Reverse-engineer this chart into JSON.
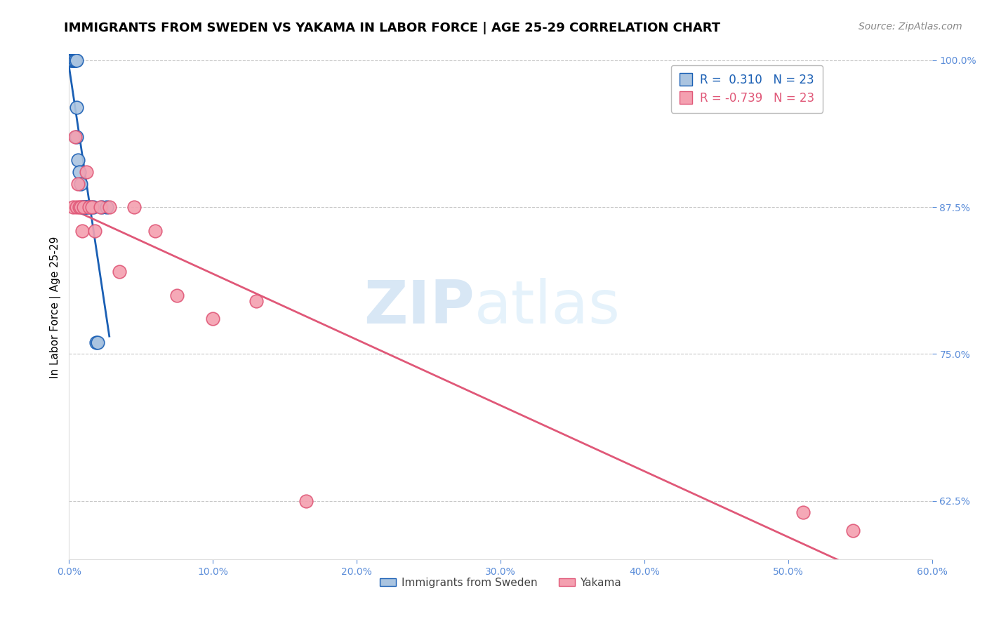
{
  "title": "IMMIGRANTS FROM SWEDEN VS YAKAMA IN LABOR FORCE | AGE 25-29 CORRELATION CHART",
  "source_text": "Source: ZipAtlas.com",
  "ylabel": "In Labor Force | Age 25-29",
  "watermark_zip": "ZIP",
  "watermark_atlas": "atlas",
  "xlim": [
    0.0,
    0.6
  ],
  "ylim": [
    0.575,
    1.005
  ],
  "yticks": [
    0.625,
    0.75,
    0.875,
    1.0
  ],
  "ytick_labels": [
    "62.5%",
    "75.0%",
    "87.5%",
    "100.0%"
  ],
  "xticks": [
    0.0,
    0.1,
    0.2,
    0.3,
    0.4,
    0.5,
    0.6
  ],
  "xtick_labels": [
    "0.0%",
    "10.0%",
    "20.0%",
    "30.0%",
    "40.0%",
    "50.0%",
    "60.0%"
  ],
  "sweden_x": [
    0.001,
    0.002,
    0.003,
    0.003,
    0.004,
    0.004,
    0.005,
    0.005,
    0.005,
    0.006,
    0.007,
    0.008,
    0.009,
    0.01,
    0.011,
    0.012,
    0.013,
    0.015,
    0.017,
    0.019,
    0.02,
    0.023,
    0.026
  ],
  "sweden_y": [
    1.0,
    1.0,
    1.0,
    1.0,
    1.0,
    1.0,
    1.0,
    0.96,
    0.935,
    0.915,
    0.905,
    0.895,
    0.875,
    0.875,
    0.875,
    0.875,
    0.875,
    0.875,
    0.875,
    0.76,
    0.76,
    0.875,
    0.875
  ],
  "yakama_x": [
    0.003,
    0.004,
    0.005,
    0.006,
    0.007,
    0.008,
    0.009,
    0.01,
    0.012,
    0.014,
    0.016,
    0.018,
    0.022,
    0.028,
    0.035,
    0.045,
    0.06,
    0.075,
    0.1,
    0.13,
    0.165,
    0.51,
    0.545
  ],
  "yakama_y": [
    0.875,
    0.935,
    0.875,
    0.895,
    0.875,
    0.875,
    0.855,
    0.875,
    0.905,
    0.875,
    0.875,
    0.855,
    0.875,
    0.875,
    0.82,
    0.875,
    0.855,
    0.8,
    0.78,
    0.795,
    0.625,
    0.615,
    0.6
  ],
  "sweden_R": "0.310",
  "sweden_N": "23",
  "yakama_R": "-0.739",
  "yakama_N": "23",
  "sweden_color": "#aac4e0",
  "yakama_color": "#f4a0b0",
  "sweden_line_color": "#1a5fb4",
  "yakama_line_color": "#e05878",
  "axis_color": "#5b8dd9",
  "grid_color": "#c8c8c8",
  "title_fontsize": 13,
  "axis_label_fontsize": 11,
  "tick_label_fontsize": 10,
  "legend_fontsize": 12,
  "source_fontsize": 10
}
